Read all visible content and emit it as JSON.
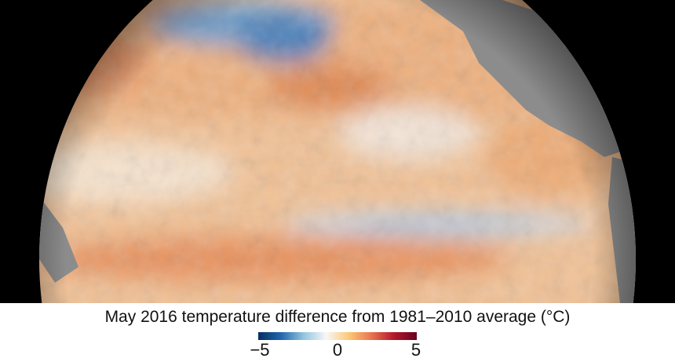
{
  "caption": "May 2016 temperature difference from 1981–2010 average (°C)",
  "legend": {
    "min_label": "−5",
    "mid_label": "0",
    "max_label": "5",
    "range": [
      -5,
      5
    ],
    "colors": [
      "#053061",
      "#2166ac",
      "#92c5de",
      "#f7f7f7",
      "#fdc877",
      "#e8734f",
      "#b2182b",
      "#67001f"
    ]
  },
  "map": {
    "land_color": "#8a8a8a",
    "background": "#000000"
  }
}
